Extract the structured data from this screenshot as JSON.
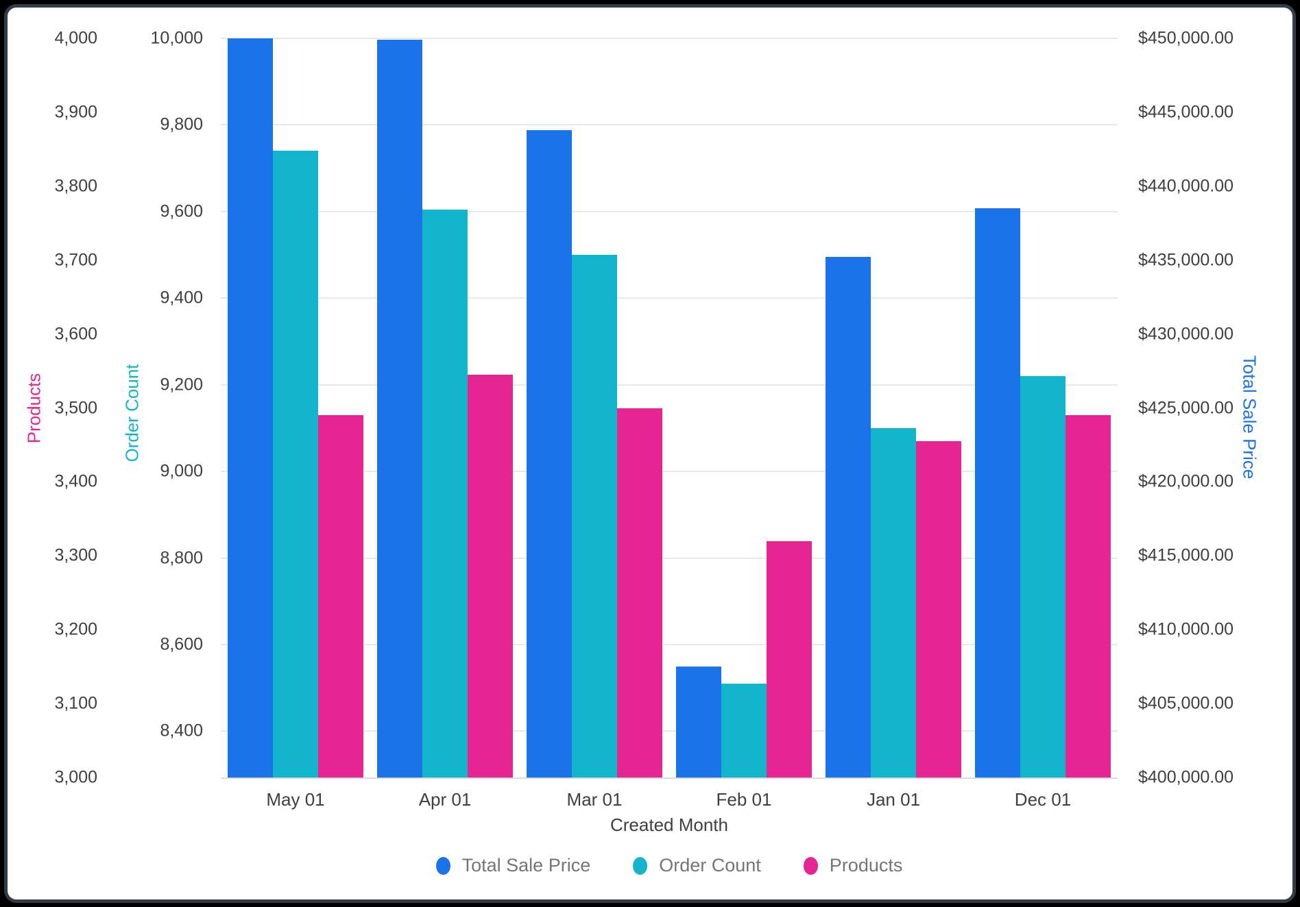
{
  "chart_data": {
    "type": "bar",
    "title": "",
    "xlabel": "Created Month",
    "categories": [
      "May 01",
      "Apr 01",
      "Mar 01",
      "Feb 01",
      "Jan 01",
      "Dec 01"
    ],
    "series": [
      {
        "name": "Total Sale Price",
        "axis": "sale",
        "color": "#1A73E8",
        "values": [
          450000,
          449900,
          443800,
          407500,
          435200,
          438500
        ]
      },
      {
        "name": "Order Count",
        "axis": "order",
        "color": "#12B5CB",
        "values": [
          9740,
          9605,
          9500,
          8510,
          9100,
          9220
        ]
      },
      {
        "name": "Products",
        "axis": "products",
        "color": "#E52592",
        "values": [
          3490,
          3545,
          3500,
          3320,
          3455,
          3490
        ]
      }
    ],
    "axes": {
      "products": {
        "title": "Products",
        "color": "#E52592",
        "side": "left-outer",
        "min": 3000,
        "max": 4000,
        "ticks": [
          {
            "label": "4,000",
            "value": 4000
          },
          {
            "label": "3,900",
            "value": 3900
          },
          {
            "label": "3,800",
            "value": 3800
          },
          {
            "label": "3,700",
            "value": 3700
          },
          {
            "label": "3,600",
            "value": 3600
          },
          {
            "label": "3,500",
            "value": 3500
          },
          {
            "label": "3,400",
            "value": 3400
          },
          {
            "label": "3,300",
            "value": 3300
          },
          {
            "label": "3,200",
            "value": 3200
          },
          {
            "label": "3,100",
            "value": 3100
          },
          {
            "label": "3,000",
            "value": 3000
          }
        ]
      },
      "order": {
        "title": "Order Count",
        "color": "#12B5CB",
        "side": "left-inner",
        "min": 8293,
        "max": 10000,
        "gridlines": true,
        "ticks": [
          {
            "label": "10,000",
            "value": 10000
          },
          {
            "label": "9,800",
            "value": 9800
          },
          {
            "label": "9,600",
            "value": 9600
          },
          {
            "label": "9,400",
            "value": 9400
          },
          {
            "label": "9,200",
            "value": 9200
          },
          {
            "label": "9,000",
            "value": 9000
          },
          {
            "label": "8,800",
            "value": 8800
          },
          {
            "label": "8,600",
            "value": 8600
          },
          {
            "label": "8,400",
            "value": 8400
          }
        ]
      },
      "sale": {
        "title": "Total Sale Price",
        "color": "#1A73E8",
        "side": "right",
        "min": 400000,
        "max": 450000,
        "ticks": [
          {
            "label": "$450,000.00",
            "value": 450000
          },
          {
            "label": "$445,000.00",
            "value": 445000
          },
          {
            "label": "$440,000.00",
            "value": 440000
          },
          {
            "label": "$435,000.00",
            "value": 435000
          },
          {
            "label": "$430,000.00",
            "value": 430000
          },
          {
            "label": "$425,000.00",
            "value": 425000
          },
          {
            "label": "$420,000.00",
            "value": 420000
          },
          {
            "label": "$415,000.00",
            "value": 415000
          },
          {
            "label": "$410,000.00",
            "value": 410000
          },
          {
            "label": "$405,000.00",
            "value": 405000
          },
          {
            "label": "$400,000.00",
            "value": 400000
          }
        ]
      }
    },
    "legend": {
      "position": "bottom"
    },
    "grid": true
  }
}
